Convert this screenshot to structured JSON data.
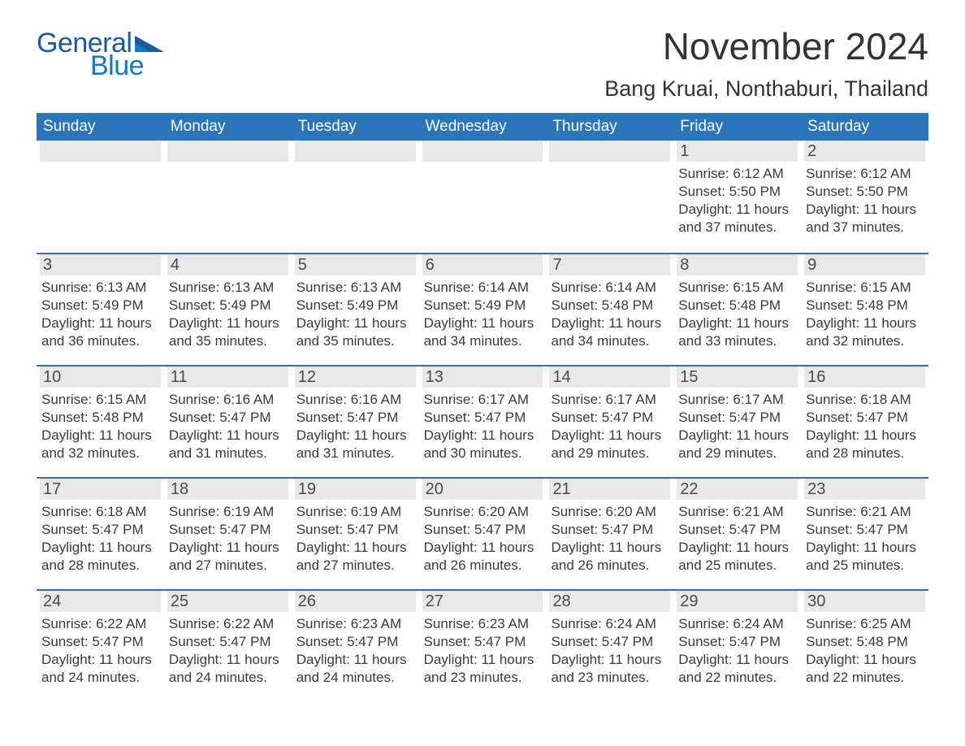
{
  "brand": {
    "part1": "General",
    "part2": "Blue",
    "text_color1": "#1b5a9e",
    "text_color2": "#0f79c4"
  },
  "title": "November 2024",
  "location": "Bang Kruai, Nonthaburi, Thailand",
  "header_bg": "#2a76b8",
  "daynum_bg": "#e8e8e9",
  "week_border": "#326fb0",
  "weekdays": [
    "Sunday",
    "Monday",
    "Tuesday",
    "Wednesday",
    "Thursday",
    "Friday",
    "Saturday"
  ],
  "weeks": [
    [
      {
        "empty": true
      },
      {
        "empty": true
      },
      {
        "empty": true
      },
      {
        "empty": true
      },
      {
        "empty": true
      },
      {
        "num": "1",
        "sunrise": "Sunrise: 6:12 AM",
        "sunset": "Sunset: 5:50 PM",
        "dl1": "Daylight: 11 hours",
        "dl2": "and 37 minutes."
      },
      {
        "num": "2",
        "sunrise": "Sunrise: 6:12 AM",
        "sunset": "Sunset: 5:50 PM",
        "dl1": "Daylight: 11 hours",
        "dl2": "and 37 minutes."
      }
    ],
    [
      {
        "num": "3",
        "sunrise": "Sunrise: 6:13 AM",
        "sunset": "Sunset: 5:49 PM",
        "dl1": "Daylight: 11 hours",
        "dl2": "and 36 minutes."
      },
      {
        "num": "4",
        "sunrise": "Sunrise: 6:13 AM",
        "sunset": "Sunset: 5:49 PM",
        "dl1": "Daylight: 11 hours",
        "dl2": "and 35 minutes."
      },
      {
        "num": "5",
        "sunrise": "Sunrise: 6:13 AM",
        "sunset": "Sunset: 5:49 PM",
        "dl1": "Daylight: 11 hours",
        "dl2": "and 35 minutes."
      },
      {
        "num": "6",
        "sunrise": "Sunrise: 6:14 AM",
        "sunset": "Sunset: 5:49 PM",
        "dl1": "Daylight: 11 hours",
        "dl2": "and 34 minutes."
      },
      {
        "num": "7",
        "sunrise": "Sunrise: 6:14 AM",
        "sunset": "Sunset: 5:48 PM",
        "dl1": "Daylight: 11 hours",
        "dl2": "and 34 minutes."
      },
      {
        "num": "8",
        "sunrise": "Sunrise: 6:15 AM",
        "sunset": "Sunset: 5:48 PM",
        "dl1": "Daylight: 11 hours",
        "dl2": "and 33 minutes."
      },
      {
        "num": "9",
        "sunrise": "Sunrise: 6:15 AM",
        "sunset": "Sunset: 5:48 PM",
        "dl1": "Daylight: 11 hours",
        "dl2": "and 32 minutes."
      }
    ],
    [
      {
        "num": "10",
        "sunrise": "Sunrise: 6:15 AM",
        "sunset": "Sunset: 5:48 PM",
        "dl1": "Daylight: 11 hours",
        "dl2": "and 32 minutes."
      },
      {
        "num": "11",
        "sunrise": "Sunrise: 6:16 AM",
        "sunset": "Sunset: 5:47 PM",
        "dl1": "Daylight: 11 hours",
        "dl2": "and 31 minutes."
      },
      {
        "num": "12",
        "sunrise": "Sunrise: 6:16 AM",
        "sunset": "Sunset: 5:47 PM",
        "dl1": "Daylight: 11 hours",
        "dl2": "and 31 minutes."
      },
      {
        "num": "13",
        "sunrise": "Sunrise: 6:17 AM",
        "sunset": "Sunset: 5:47 PM",
        "dl1": "Daylight: 11 hours",
        "dl2": "and 30 minutes."
      },
      {
        "num": "14",
        "sunrise": "Sunrise: 6:17 AM",
        "sunset": "Sunset: 5:47 PM",
        "dl1": "Daylight: 11 hours",
        "dl2": "and 29 minutes."
      },
      {
        "num": "15",
        "sunrise": "Sunrise: 6:17 AM",
        "sunset": "Sunset: 5:47 PM",
        "dl1": "Daylight: 11 hours",
        "dl2": "and 29 minutes."
      },
      {
        "num": "16",
        "sunrise": "Sunrise: 6:18 AM",
        "sunset": "Sunset: 5:47 PM",
        "dl1": "Daylight: 11 hours",
        "dl2": "and 28 minutes."
      }
    ],
    [
      {
        "num": "17",
        "sunrise": "Sunrise: 6:18 AM",
        "sunset": "Sunset: 5:47 PM",
        "dl1": "Daylight: 11 hours",
        "dl2": "and 28 minutes."
      },
      {
        "num": "18",
        "sunrise": "Sunrise: 6:19 AM",
        "sunset": "Sunset: 5:47 PM",
        "dl1": "Daylight: 11 hours",
        "dl2": "and 27 minutes."
      },
      {
        "num": "19",
        "sunrise": "Sunrise: 6:19 AM",
        "sunset": "Sunset: 5:47 PM",
        "dl1": "Daylight: 11 hours",
        "dl2": "and 27 minutes."
      },
      {
        "num": "20",
        "sunrise": "Sunrise: 6:20 AM",
        "sunset": "Sunset: 5:47 PM",
        "dl1": "Daylight: 11 hours",
        "dl2": "and 26 minutes."
      },
      {
        "num": "21",
        "sunrise": "Sunrise: 6:20 AM",
        "sunset": "Sunset: 5:47 PM",
        "dl1": "Daylight: 11 hours",
        "dl2": "and 26 minutes."
      },
      {
        "num": "22",
        "sunrise": "Sunrise: 6:21 AM",
        "sunset": "Sunset: 5:47 PM",
        "dl1": "Daylight: 11 hours",
        "dl2": "and 25 minutes."
      },
      {
        "num": "23",
        "sunrise": "Sunrise: 6:21 AM",
        "sunset": "Sunset: 5:47 PM",
        "dl1": "Daylight: 11 hours",
        "dl2": "and 25 minutes."
      }
    ],
    [
      {
        "num": "24",
        "sunrise": "Sunrise: 6:22 AM",
        "sunset": "Sunset: 5:47 PM",
        "dl1": "Daylight: 11 hours",
        "dl2": "and 24 minutes."
      },
      {
        "num": "25",
        "sunrise": "Sunrise: 6:22 AM",
        "sunset": "Sunset: 5:47 PM",
        "dl1": "Daylight: 11 hours",
        "dl2": "and 24 minutes."
      },
      {
        "num": "26",
        "sunrise": "Sunrise: 6:23 AM",
        "sunset": "Sunset: 5:47 PM",
        "dl1": "Daylight: 11 hours",
        "dl2": "and 24 minutes."
      },
      {
        "num": "27",
        "sunrise": "Sunrise: 6:23 AM",
        "sunset": "Sunset: 5:47 PM",
        "dl1": "Daylight: 11 hours",
        "dl2": "and 23 minutes."
      },
      {
        "num": "28",
        "sunrise": "Sunrise: 6:24 AM",
        "sunset": "Sunset: 5:47 PM",
        "dl1": "Daylight: 11 hours",
        "dl2": "and 23 minutes."
      },
      {
        "num": "29",
        "sunrise": "Sunrise: 6:24 AM",
        "sunset": "Sunset: 5:47 PM",
        "dl1": "Daylight: 11 hours",
        "dl2": "and 22 minutes."
      },
      {
        "num": "30",
        "sunrise": "Sunrise: 6:25 AM",
        "sunset": "Sunset: 5:48 PM",
        "dl1": "Daylight: 11 hours",
        "dl2": "and 22 minutes."
      }
    ]
  ]
}
